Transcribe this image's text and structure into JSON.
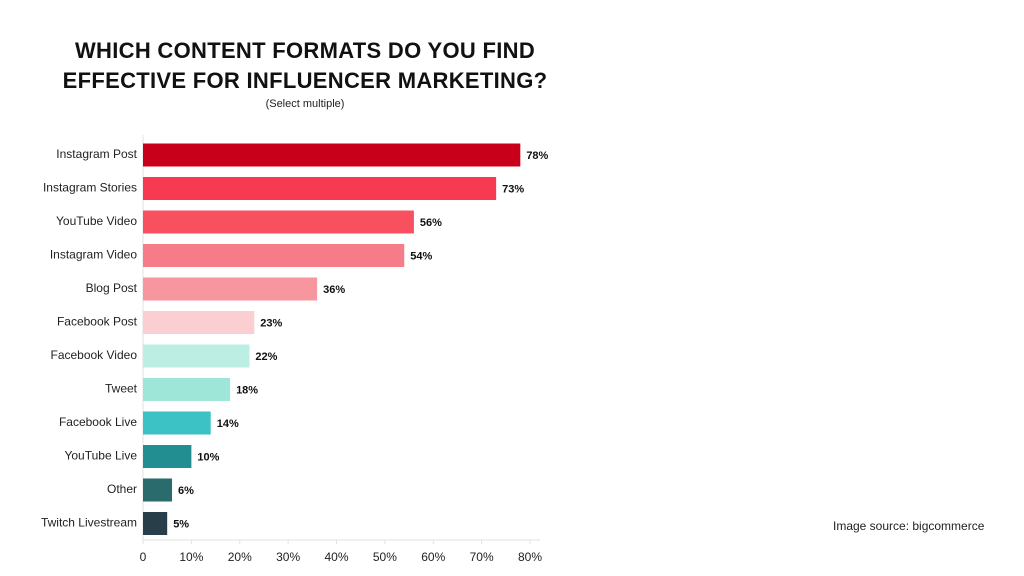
{
  "chart_data": {
    "type": "hbar",
    "title": "WHICH CONTENT FORMATS DO YOU FIND EFFECTIVE FOR INFLUENCER MARKETING?",
    "subtitle": "(Select multiple)",
    "categories": [
      "Instagram Post",
      "Instagram Stories",
      "YouTube Video",
      "Instagram Video",
      "Blog Post",
      "Facebook Post",
      "Facebook Video",
      "Tweet",
      "Facebook Live",
      "YouTube Live",
      "Other",
      "Twitch Livestream"
    ],
    "values": [
      78,
      73,
      56,
      54,
      36,
      23,
      22,
      18,
      14,
      10,
      6,
      5
    ],
    "value_labels": [
      "78%",
      "73%",
      "56%",
      "54%",
      "36%",
      "23%",
      "22%",
      "18%",
      "14%",
      "10%",
      "6%",
      "5%"
    ],
    "colors": [
      "#c8001a",
      "#f83a50",
      "#f9505f",
      "#f77c8a",
      "#f8969f",
      "#fbcfd2",
      "#bdeee3",
      "#9ee6d8",
      "#3cc2c4",
      "#238e92",
      "#2a6b6e",
      "#283f4a"
    ],
    "xlim": [
      0,
      80
    ],
    "xticks": [
      0,
      {
        "value": 10,
        "label": "10%"
      },
      {
        "value": 20,
        "label": "20%"
      },
      {
        "value": 30,
        "label": "30%"
      },
      {
        "value": 40,
        "label": "40%"
      },
      {
        "value": 50,
        "label": "50%"
      },
      {
        "value": 60,
        "label": "60%"
      },
      {
        "value": 70,
        "label": "70%"
      },
      {
        "value": 80,
        "label": "80%"
      }
    ],
    "grid": false,
    "source": "Image source: bigcommerce"
  }
}
